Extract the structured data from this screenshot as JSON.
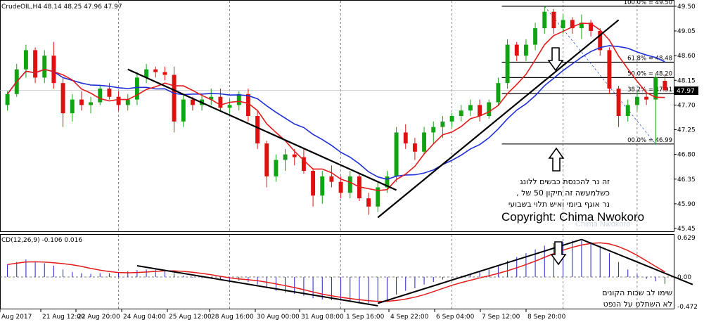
{
  "header": {
    "symbol_info": "CrudeOIL,H4  48.14 48.25 47.96 47.97",
    "macd_info": "CD(12,26,9) -0.106 0.016",
    "current_price_label": "47.97"
  },
  "price_axis": {
    "ticks": [
      "49.50",
      "49.05",
      "48.60",
      "48.15",
      "47.70",
      "47.25",
      "46.80",
      "46.35",
      "45.90",
      "45.45"
    ],
    "ylim": [
      45.45,
      49.55
    ]
  },
  "macd_axis": {
    "ticks": [
      "0.629",
      "0.00",
      "-0.472"
    ]
  },
  "time_axis": {
    "labels": [
      "Aug 2017",
      "21 Aug 12:00",
      "22 Aug 20:00",
      "24 Aug 04:00",
      "25 Aug 12:00",
      "28 Aug 16:00",
      "30 Aug 00:00",
      "31 Aug 08:00",
      "1 Sep 16:00",
      "4 Sep 22:00",
      "6 Sep 04:00",
      "7 Sep 12:00",
      "8 Sep 20:00"
    ]
  },
  "fibonacci": {
    "levels": [
      {
        "label": "100.0% = 49.50",
        "value": 49.5
      },
      {
        "label": "61.8% = 48.48",
        "value": 48.48
      },
      {
        "label": "50.0% = 48.20",
        "value": 48.2
      },
      {
        "label": "38.2% = 47.91",
        "value": 47.91
      },
      {
        "label": "00.0% = 46.99",
        "value": 46.99
      }
    ]
  },
  "annotations": {
    "hebrew_note_lines": [
      "זה נר להכנסת כבשים ללונג",
      ", כשלמעשה זה תיקון 50 של",
      "נר אוגף ביומי ואיש תלוי  בשבועי"
    ],
    "macd_note_lines": [
      "שימו לב שכות הקונים",
      "לא השתלט על הנפט"
    ],
    "copyright": "Copyright: Chima Nwokoro",
    "watermark": "Chima Nwokoro"
  },
  "colors": {
    "bull": "#12a312",
    "bear": "#e01010",
    "ma_fast": "#e31b1b",
    "ma_slow": "#1f2fd6",
    "histogram": "#2222cc",
    "signal": "#e31b1b",
    "trend": "#000000"
  },
  "chart_data": {
    "type": "candlestick",
    "candles": [
      [
        47.7,
        47.95,
        47.6,
        47.9
      ],
      [
        47.9,
        48.45,
        47.85,
        48.35
      ],
      [
        48.35,
        48.8,
        48.2,
        48.7
      ],
      [
        48.7,
        48.75,
        48.1,
        48.2
      ],
      [
        48.2,
        48.7,
        48.1,
        48.6
      ],
      [
        48.6,
        48.85,
        48.0,
        48.1
      ],
      [
        48.1,
        48.2,
        47.3,
        47.55
      ],
      [
        47.55,
        47.9,
        47.4,
        47.8
      ],
      [
        47.8,
        47.95,
        47.6,
        47.7
      ],
      [
        47.7,
        47.85,
        47.55,
        47.75
      ],
      [
        47.75,
        48.05,
        47.7,
        48.0
      ],
      [
        48.0,
        48.1,
        47.8,
        47.85
      ],
      [
        47.85,
        47.95,
        47.6,
        47.7
      ],
      [
        47.7,
        47.9,
        47.6,
        47.8
      ],
      [
        47.8,
        48.3,
        47.7,
        48.2
      ],
      [
        48.2,
        48.45,
        48.1,
        48.35
      ],
      [
        48.35,
        48.4,
        48.2,
        48.3
      ],
      [
        48.3,
        48.4,
        48.15,
        48.25
      ],
      [
        48.25,
        48.4,
        47.2,
        47.4
      ],
      [
        47.4,
        47.9,
        47.3,
        47.8
      ],
      [
        47.8,
        47.85,
        47.6,
        47.7
      ],
      [
        47.7,
        47.9,
        47.6,
        47.8
      ],
      [
        47.8,
        48.0,
        47.7,
        47.85
      ],
      [
        47.85,
        48.0,
        47.6,
        47.65
      ],
      [
        47.65,
        47.8,
        47.5,
        47.7
      ],
      [
        47.7,
        47.95,
        47.6,
        47.9
      ],
      [
        47.9,
        48.0,
        47.4,
        47.5
      ],
      [
        47.5,
        47.6,
        46.9,
        47.0
      ],
      [
        47.0,
        47.05,
        46.2,
        46.4
      ],
      [
        46.4,
        46.8,
        46.3,
        46.7
      ],
      [
        46.7,
        46.9,
        46.5,
        46.8
      ],
      [
        46.8,
        46.9,
        46.6,
        46.75
      ],
      [
        46.75,
        46.9,
        46.45,
        46.5
      ],
      [
        46.5,
        46.55,
        45.85,
        46.05
      ],
      [
        46.05,
        46.5,
        45.9,
        46.4
      ],
      [
        46.4,
        46.6,
        46.2,
        46.3
      ],
      [
        46.3,
        46.4,
        46.0,
        46.1
      ],
      [
        46.1,
        46.5,
        46.0,
        46.4
      ],
      [
        46.4,
        46.45,
        45.95,
        46.0
      ],
      [
        46.0,
        46.1,
        45.7,
        45.85
      ],
      [
        45.85,
        46.3,
        45.75,
        46.2
      ],
      [
        46.2,
        46.5,
        46.1,
        46.4
      ],
      [
        46.4,
        47.3,
        46.3,
        47.2
      ],
      [
        47.2,
        47.35,
        46.9,
        47.0
      ],
      [
        47.0,
        47.1,
        46.7,
        46.85
      ],
      [
        46.85,
        47.3,
        46.8,
        47.2
      ],
      [
        47.2,
        47.4,
        47.0,
        47.3
      ],
      [
        47.3,
        47.5,
        47.1,
        47.4
      ],
      [
        47.4,
        47.55,
        47.3,
        47.5
      ],
      [
        47.5,
        47.7,
        47.4,
        47.6
      ],
      [
        47.6,
        47.8,
        47.5,
        47.7
      ],
      [
        47.7,
        47.8,
        47.4,
        47.5
      ],
      [
        47.5,
        47.8,
        47.45,
        47.75
      ],
      [
        47.75,
        48.2,
        47.7,
        48.1
      ],
      [
        48.1,
        48.9,
        48.0,
        48.8
      ],
      [
        48.8,
        48.85,
        48.5,
        48.6
      ],
      [
        48.6,
        48.9,
        48.5,
        48.8
      ],
      [
        48.8,
        49.2,
        48.7,
        49.1
      ],
      [
        49.1,
        49.5,
        49.0,
        49.4
      ],
      [
        49.4,
        49.45,
        49.0,
        49.1
      ],
      [
        49.1,
        49.35,
        49.0,
        49.25
      ],
      [
        49.25,
        49.3,
        49.0,
        49.1
      ],
      [
        49.1,
        49.35,
        48.9,
        49.2
      ],
      [
        49.2,
        49.25,
        48.95,
        49.05
      ],
      [
        49.05,
        49.1,
        48.6,
        48.7
      ],
      [
        48.7,
        48.75,
        47.9,
        48.0
      ],
      [
        48.0,
        48.05,
        47.3,
        47.5
      ],
      [
        47.5,
        47.8,
        47.4,
        47.7
      ],
      [
        47.7,
        47.95,
        47.6,
        47.85
      ],
      [
        47.85,
        47.95,
        47.7,
        47.8
      ],
      [
        47.8,
        48.25,
        46.99,
        48.2
      ],
      [
        48.14,
        48.25,
        47.96,
        47.97
      ]
    ],
    "trendlines_price": [
      {
        "from": [
          13,
          48.35
        ],
        "to": [
          42,
          46.15
        ]
      },
      {
        "from": [
          40,
          45.65
        ],
        "to": [
          66,
          49.25
        ]
      }
    ],
    "macd_histogram": [
      0.2,
      0.24,
      0.28,
      0.25,
      0.22,
      0.18,
      0.12,
      0.08,
      0.06,
      0.05,
      0.06,
      0.06,
      0.07,
      0.09,
      0.11,
      0.12,
      0.12,
      0.11,
      0.06,
      0.02,
      -0.01,
      -0.02,
      -0.03,
      -0.05,
      -0.06,
      -0.06,
      -0.08,
      -0.12,
      -0.18,
      -0.22,
      -0.25,
      -0.27,
      -0.3,
      -0.34,
      -0.36,
      -0.37,
      -0.38,
      -0.39,
      -0.4,
      -0.42,
      -0.4,
      -0.36,
      -0.28,
      -0.22,
      -0.18,
      -0.12,
      -0.08,
      -0.04,
      -0.01,
      0.02,
      0.05,
      0.08,
      0.12,
      0.18,
      0.26,
      0.32,
      0.38,
      0.44,
      0.5,
      0.54,
      0.56,
      0.58,
      0.58,
      0.56,
      0.5,
      0.38,
      0.24,
      0.12,
      0.04,
      -0.03,
      -0.07,
      -0.11
    ],
    "macd_trendlines": [
      {
        "from": [
          14,
          0.18
        ],
        "to": [
          40,
          -0.46
        ]
      },
      {
        "from": [
          40,
          -0.42
        ],
        "to": [
          62,
          0.6
        ]
      },
      {
        "from": [
          62,
          0.6
        ],
        "to": [
          74,
          -0.12
        ]
      }
    ],
    "price_ylim": [
      45.45,
      49.55
    ],
    "macd_ylim": [
      -0.472,
      0.629
    ]
  }
}
